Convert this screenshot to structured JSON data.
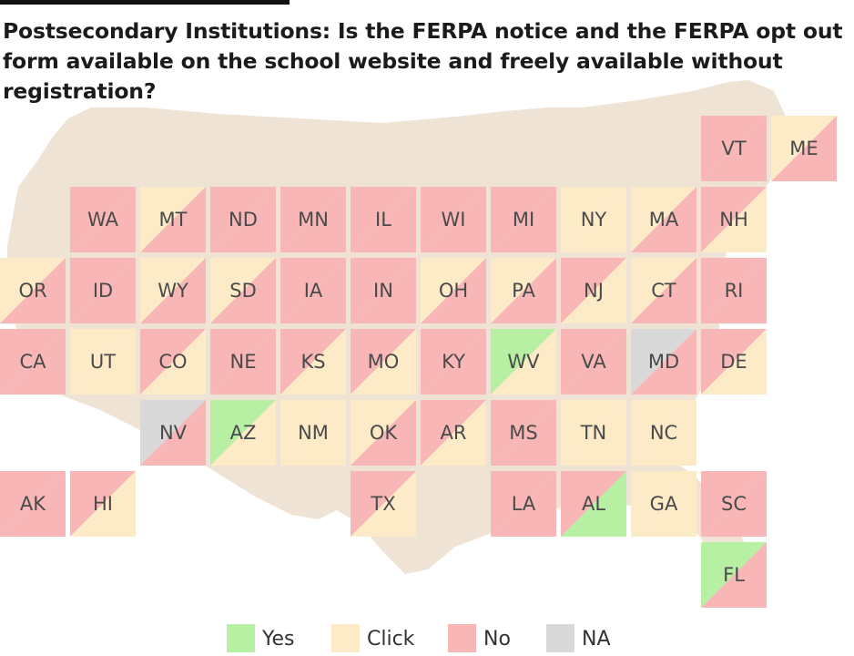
{
  "title": "Postsecondary Institutions: Is the FERPA notice and the FERPA opt out form available on the school website and freely available without registration?",
  "colors": {
    "Yes": "#b7f0a2",
    "Click": "#fdebc8",
    "No": "#f8b6b6",
    "NA": "#d9d9d9",
    "silhouette": "#efe3d6"
  },
  "legend": [
    {
      "key": "Yes",
      "label": "Yes"
    },
    {
      "key": "Click",
      "label": "Click"
    },
    {
      "key": "No",
      "label": "No"
    },
    {
      "key": "NA",
      "label": "NA"
    }
  ],
  "states": [
    {
      "abbr": "VT",
      "row": 0,
      "col": 10,
      "a": "No",
      "b": "No"
    },
    {
      "abbr": "ME",
      "row": 0,
      "col": 11,
      "a": "Click",
      "b": "No"
    },
    {
      "abbr": "WA",
      "row": 1,
      "col": 1,
      "a": "No",
      "b": "No"
    },
    {
      "abbr": "MT",
      "row": 1,
      "col": 2,
      "a": "Click",
      "b": "No"
    },
    {
      "abbr": "ND",
      "row": 1,
      "col": 3,
      "a": "No",
      "b": "No"
    },
    {
      "abbr": "MN",
      "row": 1,
      "col": 4,
      "a": "No",
      "b": "No"
    },
    {
      "abbr": "IL",
      "row": 1,
      "col": 5,
      "a": "No",
      "b": "No"
    },
    {
      "abbr": "WI",
      "row": 1,
      "col": 6,
      "a": "No",
      "b": "No"
    },
    {
      "abbr": "MI",
      "row": 1,
      "col": 7,
      "a": "No",
      "b": "No"
    },
    {
      "abbr": "NY",
      "row": 1,
      "col": 8,
      "a": "Click",
      "b": "Click"
    },
    {
      "abbr": "MA",
      "row": 1,
      "col": 9,
      "a": "Click",
      "b": "No"
    },
    {
      "abbr": "NH",
      "row": 1,
      "col": 10,
      "a": "No",
      "b": "Click"
    },
    {
      "abbr": "OR",
      "row": 2,
      "col": 0,
      "a": "Click",
      "b": "No"
    },
    {
      "abbr": "ID",
      "row": 2,
      "col": 1,
      "a": "No",
      "b": "No"
    },
    {
      "abbr": "WY",
      "row": 2,
      "col": 2,
      "a": "Click",
      "b": "No"
    },
    {
      "abbr": "SD",
      "row": 2,
      "col": 3,
      "a": "Click",
      "b": "No"
    },
    {
      "abbr": "IA",
      "row": 2,
      "col": 4,
      "a": "No",
      "b": "No"
    },
    {
      "abbr": "IN",
      "row": 2,
      "col": 5,
      "a": "No",
      "b": "No"
    },
    {
      "abbr": "OH",
      "row": 2,
      "col": 6,
      "a": "Click",
      "b": "No"
    },
    {
      "abbr": "PA",
      "row": 2,
      "col": 7,
      "a": "Click",
      "b": "No"
    },
    {
      "abbr": "NJ",
      "row": 2,
      "col": 8,
      "a": "No",
      "b": "Click"
    },
    {
      "abbr": "CT",
      "row": 2,
      "col": 9,
      "a": "Click",
      "b": "No"
    },
    {
      "abbr": "RI",
      "row": 2,
      "col": 10,
      "a": "No",
      "b": "No"
    },
    {
      "abbr": "CA",
      "row": 3,
      "col": 0,
      "a": "No",
      "b": "No"
    },
    {
      "abbr": "UT",
      "row": 3,
      "col": 1,
      "a": "Click",
      "b": "Click"
    },
    {
      "abbr": "CO",
      "row": 3,
      "col": 2,
      "a": "No",
      "b": "Click"
    },
    {
      "abbr": "NE",
      "row": 3,
      "col": 3,
      "a": "No",
      "b": "No"
    },
    {
      "abbr": "KS",
      "row": 3,
      "col": 4,
      "a": "No",
      "b": "Click"
    },
    {
      "abbr": "MO",
      "row": 3,
      "col": 5,
      "a": "No",
      "b": "Click"
    },
    {
      "abbr": "KY",
      "row": 3,
      "col": 6,
      "a": "No",
      "b": "No"
    },
    {
      "abbr": "WV",
      "row": 3,
      "col": 7,
      "a": "Yes",
      "b": "Click"
    },
    {
      "abbr": "VA",
      "row": 3,
      "col": 8,
      "a": "No",
      "b": "No"
    },
    {
      "abbr": "MD",
      "row": 3,
      "col": 9,
      "a": "NA",
      "b": "No"
    },
    {
      "abbr": "DE",
      "row": 3,
      "col": 10,
      "a": "No",
      "b": "Click"
    },
    {
      "abbr": "NV",
      "row": 4,
      "col": 2,
      "a": "NA",
      "b": "No"
    },
    {
      "abbr": "AZ",
      "row": 4,
      "col": 3,
      "a": "Yes",
      "b": "Click"
    },
    {
      "abbr": "NM",
      "row": 4,
      "col": 4,
      "a": "Click",
      "b": "Click"
    },
    {
      "abbr": "OK",
      "row": 4,
      "col": 5,
      "a": "Click",
      "b": "No"
    },
    {
      "abbr": "AR",
      "row": 4,
      "col": 6,
      "a": "No",
      "b": "Click"
    },
    {
      "abbr": "MS",
      "row": 4,
      "col": 7,
      "a": "No",
      "b": "No"
    },
    {
      "abbr": "TN",
      "row": 4,
      "col": 8,
      "a": "Click",
      "b": "Click"
    },
    {
      "abbr": "NC",
      "row": 4,
      "col": 9,
      "a": "Click",
      "b": "Click"
    },
    {
      "abbr": "AK",
      "row": 5,
      "col": 0,
      "a": "No",
      "b": "No"
    },
    {
      "abbr": "HI",
      "row": 5,
      "col": 1,
      "a": "No",
      "b": "Click"
    },
    {
      "abbr": "TX",
      "row": 5,
      "col": 5,
      "a": "No",
      "b": "Click"
    },
    {
      "abbr": "LA",
      "row": 5,
      "col": 7,
      "a": "No",
      "b": "No"
    },
    {
      "abbr": "AL",
      "row": 5,
      "col": 8,
      "a": "No",
      "b": "Yes"
    },
    {
      "abbr": "GA",
      "row": 5,
      "col": 9,
      "a": "Click",
      "b": "Click"
    },
    {
      "abbr": "SC",
      "row": 5,
      "col": 10,
      "a": "No",
      "b": "No"
    },
    {
      "abbr": "FL",
      "row": 6,
      "col": 10,
      "a": "Yes",
      "b": "No"
    }
  ]
}
